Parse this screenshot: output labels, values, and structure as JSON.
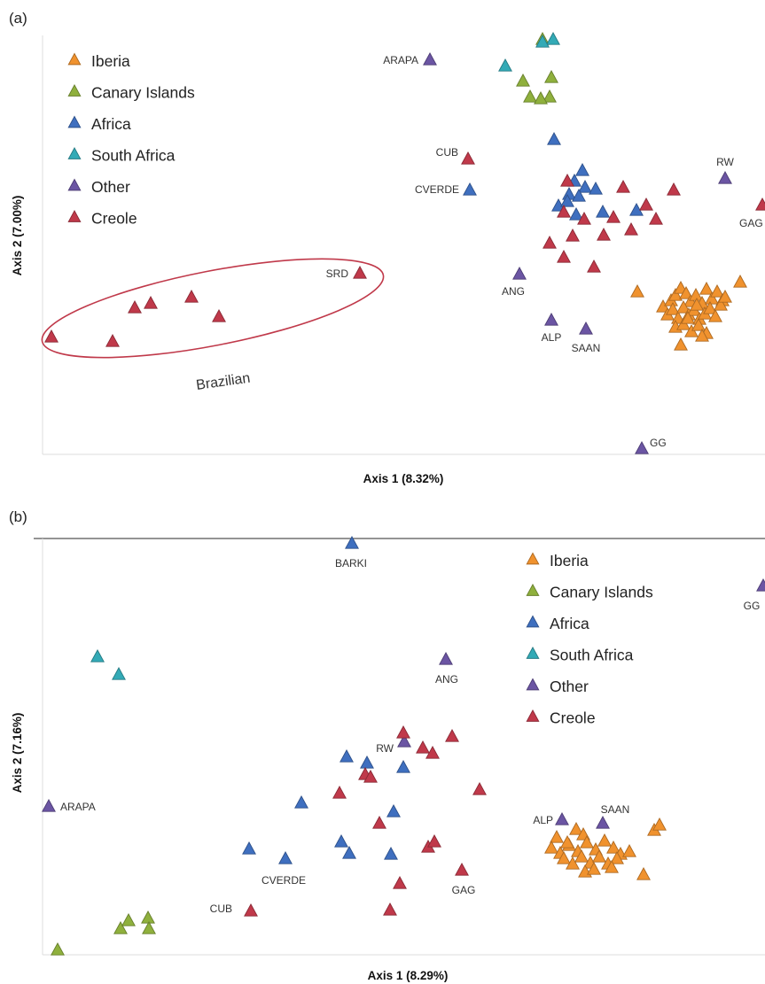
{
  "chart_data": [
    {
      "panel": "(a)",
      "type": "scatter",
      "xlabel": "Axis 1 (8.32%)",
      "ylabel": "Axis 2 (7.00%)",
      "grid": false,
      "legend_position": "top-left",
      "legend": [
        "Iberia",
        "Canary Islands",
        "Africa",
        "South Africa",
        "Other",
        "Creole"
      ],
      "annotation": "Brazilian",
      "labeled_points": [
        {
          "label": "ARAPA",
          "group": "Other"
        },
        {
          "label": "CUB",
          "group": "Creole"
        },
        {
          "label": "CVERDE",
          "group": "Africa"
        },
        {
          "label": "RW",
          "group": "Other"
        },
        {
          "label": "GAG",
          "group": "Creole"
        },
        {
          "label": "SRD",
          "group": "Creole"
        },
        {
          "label": "ANG",
          "group": "Other"
        },
        {
          "label": "ALP",
          "group": "Other"
        },
        {
          "label": "SAAN",
          "group": "Other"
        },
        {
          "label": "GG",
          "group": "Other"
        }
      ],
      "series": [
        {
          "name": "Iberia",
          "points": [
            [
              719,
              330
            ],
            [
              835,
              319
            ],
            [
              748,
              347
            ],
            [
              757,
              340
            ],
            [
              762,
              334
            ],
            [
              768,
              326
            ],
            [
              774,
              332
            ],
            [
              779,
              341
            ],
            [
              785,
              334
            ],
            [
              792,
              343
            ],
            [
              797,
              327
            ],
            [
              803,
              338
            ],
            [
              809,
              330
            ],
            [
              815,
              340
            ],
            [
              753,
              356
            ],
            [
              759,
              350
            ],
            [
              765,
              360
            ],
            [
              771,
              348
            ],
            [
              777,
              356
            ],
            [
              783,
              351
            ],
            [
              789,
              361
            ],
            [
              795,
              355
            ],
            [
              801,
              349
            ],
            [
              807,
              358
            ],
            [
              813,
              345
            ],
            [
              762,
              370
            ],
            [
              771,
              367
            ],
            [
              780,
              375
            ],
            [
              788,
              368
            ],
            [
              797,
              377
            ],
            [
              768,
              390
            ],
            [
              792,
              380
            ],
            [
              776,
              360
            ],
            [
              786,
              345
            ],
            [
              818,
              336
            ]
          ]
        },
        {
          "name": "Canary Islands",
          "points": [
            [
              612,
              45
            ],
            [
              622,
              88
            ],
            [
              590,
              92
            ],
            [
              598,
              110
            ],
            [
              620,
              110
            ],
            [
              610,
              112
            ]
          ]
        },
        {
          "name": "Africa",
          "points": [
            [
              625,
              158
            ],
            [
              530,
              215
            ],
            [
              657,
              193
            ],
            [
              648,
              205
            ],
            [
              660,
              212
            ],
            [
              672,
              214
            ],
            [
              642,
              220
            ],
            [
              653,
              222
            ],
            [
              630,
              233
            ],
            [
              640,
              228
            ],
            [
              680,
              240
            ],
            [
              718,
              238
            ],
            [
              650,
              243
            ]
          ]
        },
        {
          "name": "South Africa",
          "points": [
            [
              624,
              45
            ],
            [
              570,
              75
            ],
            [
              612,
              48
            ]
          ]
        },
        {
          "name": "Other",
          "points": [
            [
              485,
              68
            ],
            [
              818,
              202
            ],
            [
              586,
              310
            ],
            [
              622,
              362
            ],
            [
              661,
              372
            ],
            [
              724,
              507
            ]
          ]
        },
        {
          "name": "Creole",
          "points": [
            [
              528,
              180
            ],
            [
              703,
              212
            ],
            [
              760,
              215
            ],
            [
              729,
              232
            ],
            [
              640,
              205
            ],
            [
              860,
              232
            ],
            [
              636,
              240
            ],
            [
              659,
              248
            ],
            [
              692,
              246
            ],
            [
              740,
              248
            ],
            [
              646,
              267
            ],
            [
              681,
              266
            ],
            [
              712,
              260
            ],
            [
              620,
              275
            ],
            [
              636,
              291
            ],
            [
              670,
              302
            ],
            [
              406,
              309
            ],
            [
              58,
              381
            ],
            [
              127,
              386
            ],
            [
              152,
              348
            ],
            [
              170,
              343
            ],
            [
              216,
              336
            ],
            [
              247,
              358
            ]
          ]
        }
      ]
    },
    {
      "panel": "(b)",
      "type": "scatter",
      "xlabel": "Axis 1 (8.29%)",
      "ylabel": "Axis 2 (7.16%)",
      "grid": false,
      "legend_position": "top-right",
      "legend": [
        "Iberia",
        "Canary Islands",
        "Africa",
        "South Africa",
        "Other",
        "Creole"
      ],
      "labeled_points": [
        {
          "label": "BARKI",
          "group": "Africa"
        },
        {
          "label": "GG",
          "group": "Other"
        },
        {
          "label": "ANG",
          "group": "Other"
        },
        {
          "label": "RW",
          "group": "Other"
        },
        {
          "label": "ARAPA",
          "group": "Other"
        },
        {
          "label": "ALP",
          "group": "Other"
        },
        {
          "label": "SAAN",
          "group": "Other"
        },
        {
          "label": "CVERDE",
          "group": "Africa"
        },
        {
          "label": "CUB",
          "group": "Creole"
        },
        {
          "label": "GAG",
          "group": "Creole"
        }
      ],
      "series": [
        {
          "name": "Iberia",
          "points": [
            [
              628,
              946
            ],
            [
              650,
              937
            ],
            [
              658,
              943
            ],
            [
              738,
              938
            ],
            [
              744,
              932
            ],
            [
              726,
              988
            ],
            [
              622,
              958
            ],
            [
              632,
              964
            ],
            [
              642,
              955
            ],
            [
              652,
              962
            ],
            [
              662,
              952
            ],
            [
              672,
              960
            ],
            [
              682,
              950
            ],
            [
              692,
              958
            ],
            [
              700,
              965
            ],
            [
              636,
              970
            ],
            [
              646,
              976
            ],
            [
              656,
              968
            ],
            [
              666,
              975
            ],
            [
              676,
              968
            ],
            [
              686,
              976
            ],
            [
              696,
              970
            ],
            [
              640,
              952
            ],
            [
              660,
              985
            ],
            [
              670,
              982
            ],
            [
              690,
              980
            ],
            [
              710,
              962
            ]
          ]
        },
        {
          "name": "Canary Islands",
          "points": [
            [
              65,
              1073
            ],
            [
              136,
              1049
            ],
            [
              145,
              1040
            ],
            [
              167,
              1037
            ],
            [
              168,
              1049
            ]
          ]
        },
        {
          "name": "Africa",
          "points": [
            [
              397,
              614
            ],
            [
              391,
              855
            ],
            [
              414,
              862
            ],
            [
              455,
              867
            ],
            [
              340,
              907
            ],
            [
              444,
              917
            ],
            [
              281,
              959
            ],
            [
              322,
              970
            ],
            [
              385,
              951
            ],
            [
              394,
              964
            ],
            [
              441,
              965
            ]
          ]
        },
        {
          "name": "South Africa",
          "points": [
            [
              110,
              742
            ],
            [
              134,
              762
            ]
          ]
        },
        {
          "name": "Other",
          "points": [
            [
              861,
              662
            ],
            [
              503,
              745
            ],
            [
              456,
              838
            ],
            [
              55,
              911
            ],
            [
              634,
              926
            ],
            [
              680,
              930
            ]
          ]
        },
        {
          "name": "Creole",
          "points": [
            [
              455,
              828
            ],
            [
              477,
              845
            ],
            [
              510,
              832
            ],
            [
              488,
              851
            ],
            [
              412,
              875
            ],
            [
              418,
              878
            ],
            [
              541,
              892
            ],
            [
              383,
              896
            ],
            [
              428,
              930
            ],
            [
              483,
              957
            ],
            [
              490,
              951
            ],
            [
              521,
              983
            ],
            [
              451,
              998
            ],
            [
              440,
              1028
            ],
            [
              283,
              1029
            ]
          ]
        }
      ]
    }
  ],
  "colors": {
    "Iberia": "#f0922e",
    "Canary Islands": "#8fb03d",
    "Africa": "#3f6fbf",
    "South Africa": "#33aab6",
    "Other": "#6b55a3",
    "Creole": "#c0394a",
    "ellipse": "#c0394a"
  }
}
